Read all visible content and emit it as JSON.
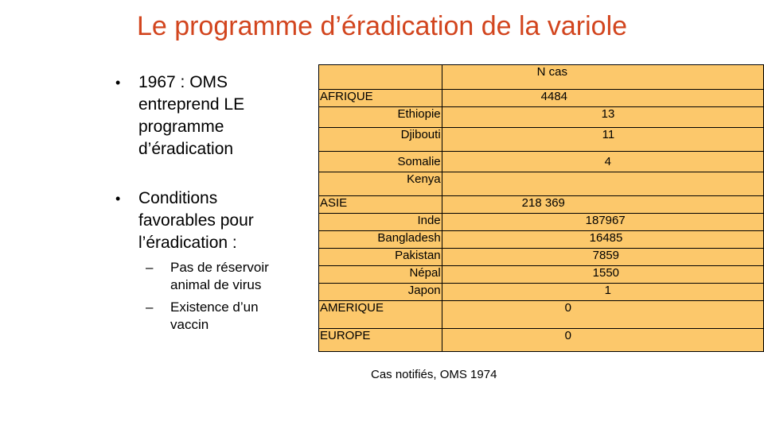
{
  "slide": {
    "title": "Le programme d’éradication de la variole",
    "bullets": [
      {
        "text": "1967 : OMS entreprend LE programme d’éradication"
      },
      {
        "text": "Conditions favorables pour l’éradication :",
        "subitems": [
          "Pas de réservoir animal  de virus",
          "Existence  d’un vaccin"
        ]
      }
    ],
    "bullet_glyph": "•",
    "dash_glyph": "–"
  },
  "table": {
    "header": "N cas",
    "rows": [
      {
        "label": "AFRIQUE",
        "value": "4484"
      },
      {
        "label": "Ethiopie",
        "value": "13"
      },
      {
        "label": "Djibouti",
        "value": "11"
      },
      {
        "label": "Somalie",
        "value": "4"
      },
      {
        "label": "Kenya",
        "value": ""
      },
      {
        "label": "ASIE",
        "value": "218 369"
      },
      {
        "label": "Inde",
        "value": "187967"
      },
      {
        "label": "Bangladesh",
        "value": "16485"
      },
      {
        "label": "Pakistan",
        "value": "7859"
      },
      {
        "label": "Népal",
        "value": "1550"
      },
      {
        "label": "Japon",
        "value": "1"
      },
      {
        "label": "AMERIQUE",
        "value": "0"
      },
      {
        "label": "EUROPE",
        "value": "0"
      }
    ],
    "caption": "Cas notifiés, OMS 1974",
    "fill_color": "#fcc86b"
  },
  "colors": {
    "title": "#d2451e"
  }
}
